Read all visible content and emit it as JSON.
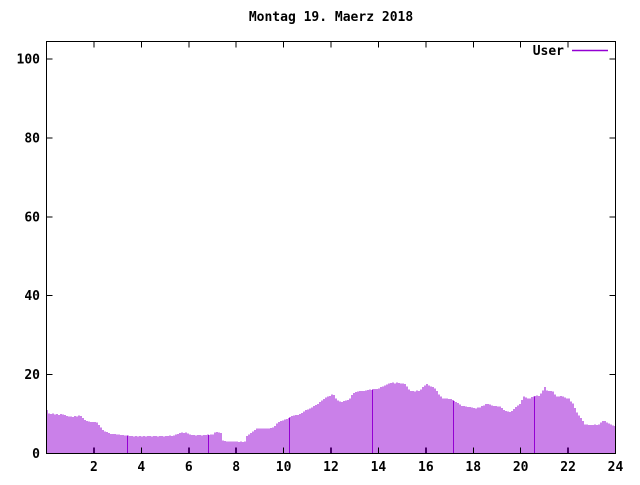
{
  "chart_data": {
    "type": "bar",
    "title": "Montag 19. Maerz 2018",
    "series_name": "User",
    "series_color": "#9400d3",
    "axis_color": "#000000",
    "background_color": "#ffffff",
    "x_unit": "hour of day",
    "interval_minutes": 5,
    "xlim": [
      0,
      24
    ],
    "ylim": [
      0,
      100
    ],
    "xticks": [
      2,
      4,
      6,
      8,
      10,
      12,
      14,
      16,
      18,
      20,
      22,
      24
    ],
    "yticks": [
      0,
      20,
      40,
      60,
      80,
      100
    ],
    "grid": false,
    "legend_position": "top-right-inside",
    "values": [
      11.0,
      10.2,
      10.0,
      10.1,
      9.9,
      10.0,
      9.8,
      10.0,
      9.9,
      9.7,
      9.5,
      9.4,
      9.4,
      9.3,
      9.5,
      9.4,
      9.6,
      9.5,
      9.0,
      8.5,
      8.2,
      8.1,
      8.0,
      8.0,
      8.0,
      7.9,
      7.2,
      6.6,
      6.0,
      5.6,
      5.4,
      5.2,
      5.0,
      5.0,
      4.9,
      4.8,
      4.8,
      4.7,
      4.7,
      4.6,
      4.6,
      4.5,
      4.4,
      4.4,
      4.3,
      4.4,
      4.3,
      4.4,
      4.3,
      4.4,
      4.3,
      4.4,
      4.4,
      4.3,
      4.4,
      4.4,
      4.3,
      4.4,
      4.4,
      4.3,
      4.4,
      4.4,
      4.5,
      4.4,
      4.6,
      4.8,
      5.0,
      5.2,
      5.3,
      5.2,
      5.3,
      5.1,
      4.8,
      4.7,
      4.7,
      4.6,
      4.7,
      4.7,
      4.6,
      4.7,
      4.7,
      4.8,
      4.7,
      4.8,
      4.8,
      5.3,
      5.4,
      5.3,
      5.2,
      3.3,
      3.2,
      3.1,
      3.1,
      3.0,
      3.1,
      3.0,
      3.0,
      2.9,
      3.0,
      2.9,
      3.0,
      4.4,
      4.8,
      5.2,
      5.6,
      6.0,
      6.3,
      6.3,
      6.4,
      6.3,
      6.4,
      6.4,
      6.3,
      6.5,
      6.6,
      7.0,
      7.6,
      8.0,
      8.2,
      8.4,
      8.6,
      8.8,
      9.0,
      9.3,
      9.5,
      9.6,
      9.7,
      9.8,
      10.0,
      10.3,
      10.6,
      11.0,
      11.2,
      11.4,
      11.7,
      12.0,
      12.3,
      12.6,
      13.0,
      13.4,
      13.8,
      14.2,
      14.4,
      14.6,
      14.9,
      14.8,
      14.0,
      13.4,
      13.2,
      13.1,
      13.3,
      13.4,
      13.6,
      14.0,
      14.8,
      15.3,
      15.6,
      15.7,
      15.8,
      15.8,
      15.9,
      16.0,
      16.1,
      16.2,
      16.1,
      16.3,
      16.3,
      16.4,
      16.5,
      16.8,
      17.0,
      17.3,
      17.5,
      17.7,
      17.9,
      18.0,
      17.8,
      18.0,
      17.9,
      17.8,
      17.8,
      17.6,
      17.0,
      16.2,
      15.8,
      15.9,
      15.7,
      16.0,
      15.9,
      16.2,
      16.8,
      17.2,
      17.6,
      17.2,
      17.0,
      16.8,
      16.5,
      15.8,
      15.0,
      14.5,
      14.0,
      13.9,
      13.9,
      13.8,
      13.8,
      13.6,
      13.3,
      13.0,
      12.8,
      12.4,
      12.0,
      12.0,
      11.9,
      11.8,
      11.8,
      11.6,
      11.5,
      11.4,
      11.6,
      11.7,
      12.0,
      12.2,
      12.6,
      12.5,
      12.4,
      12.2,
      12.1,
      12.0,
      11.9,
      11.9,
      11.5,
      11.0,
      10.8,
      10.6,
      10.5,
      10.8,
      11.3,
      11.8,
      12.2,
      12.5,
      13.5,
      14.5,
      14.2,
      13.9,
      14.0,
      14.3,
      14.4,
      14.6,
      14.7,
      14.6,
      15.2,
      16.0,
      16.8,
      16.0,
      15.9,
      15.8,
      15.7,
      15.0,
      14.5,
      14.4,
      14.6,
      14.5,
      14.2,
      14.0,
      13.9,
      13.2,
      12.7,
      11.5,
      10.4,
      9.6,
      9.0,
      8.2,
      7.4,
      7.3,
      7.2,
      7.2,
      7.2,
      7.3,
      7.2,
      7.4,
      7.8,
      8.3,
      8.2,
      7.9,
      7.6,
      7.3,
      7.1,
      7.0
    ]
  }
}
